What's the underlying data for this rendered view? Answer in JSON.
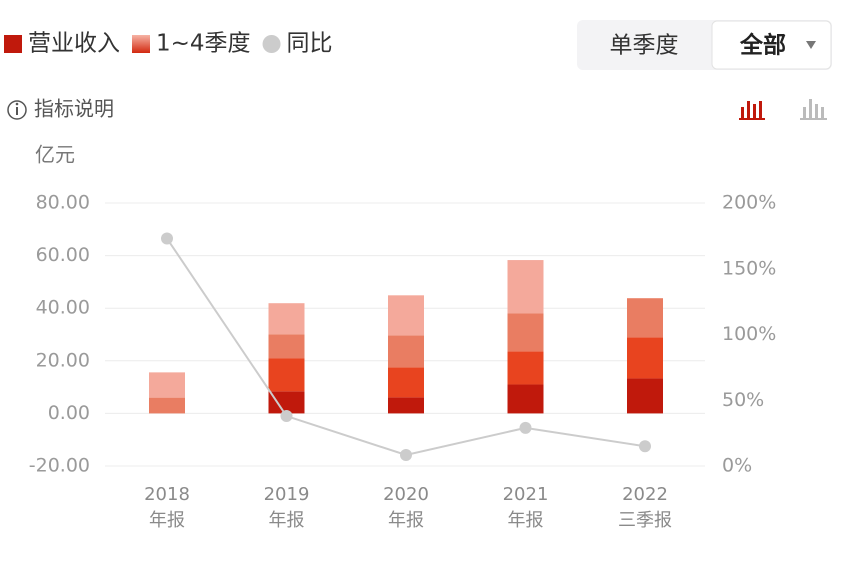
{
  "toggle": {
    "left": "单季度",
    "right": "全部"
  },
  "info_label": "指标说明",
  "chart_data": {
    "type": "bar",
    "legend": [
      {
        "label": "营业收入",
        "color": "#c0190c"
      },
      {
        "label": "1~4季度",
        "color": "#f08c72"
      },
      {
        "label": "同比",
        "color": "#cccccc"
      }
    ],
    "y_unit": "亿元",
    "categories": [
      "2018",
      "2019",
      "2020",
      "2021",
      "2022"
    ],
    "category_sublabels": [
      "年报",
      "年报",
      "年报",
      "年报",
      "三季报"
    ],
    "series": [
      {
        "color": "#c0190c",
        "values": [
          null,
          8.4,
          6.1,
          11,
          13.3
        ]
      },
      {
        "color": "#e8441f",
        "values": [
          null,
          12.6,
          11.4,
          12.6,
          15.6
        ]
      },
      {
        "color": "#e97d62",
        "values": [
          6,
          9.1,
          12.2,
          14.5,
          14.9
        ]
      },
      {
        "color": "#f4a99b",
        "values": [
          9.6,
          11.8,
          15.2,
          20.2,
          null
        ]
      }
    ],
    "yoy": {
      "color": "#cccccc",
      "axis": "y2",
      "values": [
        173,
        38,
        8.4,
        29,
        15
      ]
    },
    "ylim": [
      -20,
      80
    ],
    "yticks": [
      {
        "value": 80,
        "label": "80.00"
      },
      {
        "value": 60,
        "label": "60.00"
      },
      {
        "value": 40,
        "label": "40.00"
      },
      {
        "value": 20,
        "label": "20.00"
      },
      {
        "value": 0,
        "label": "0.00"
      },
      {
        "value": -20,
        "label": "-20.00"
      }
    ],
    "y2lim": [
      0,
      200
    ],
    "y2ticks": [
      {
        "value": 200,
        "label": "200%"
      },
      {
        "value": 150,
        "label": "150%"
      },
      {
        "value": 100,
        "label": "100%"
      },
      {
        "value": 50,
        "label": "50%"
      },
      {
        "value": 0,
        "label": "0%"
      }
    ],
    "grid": true
  }
}
